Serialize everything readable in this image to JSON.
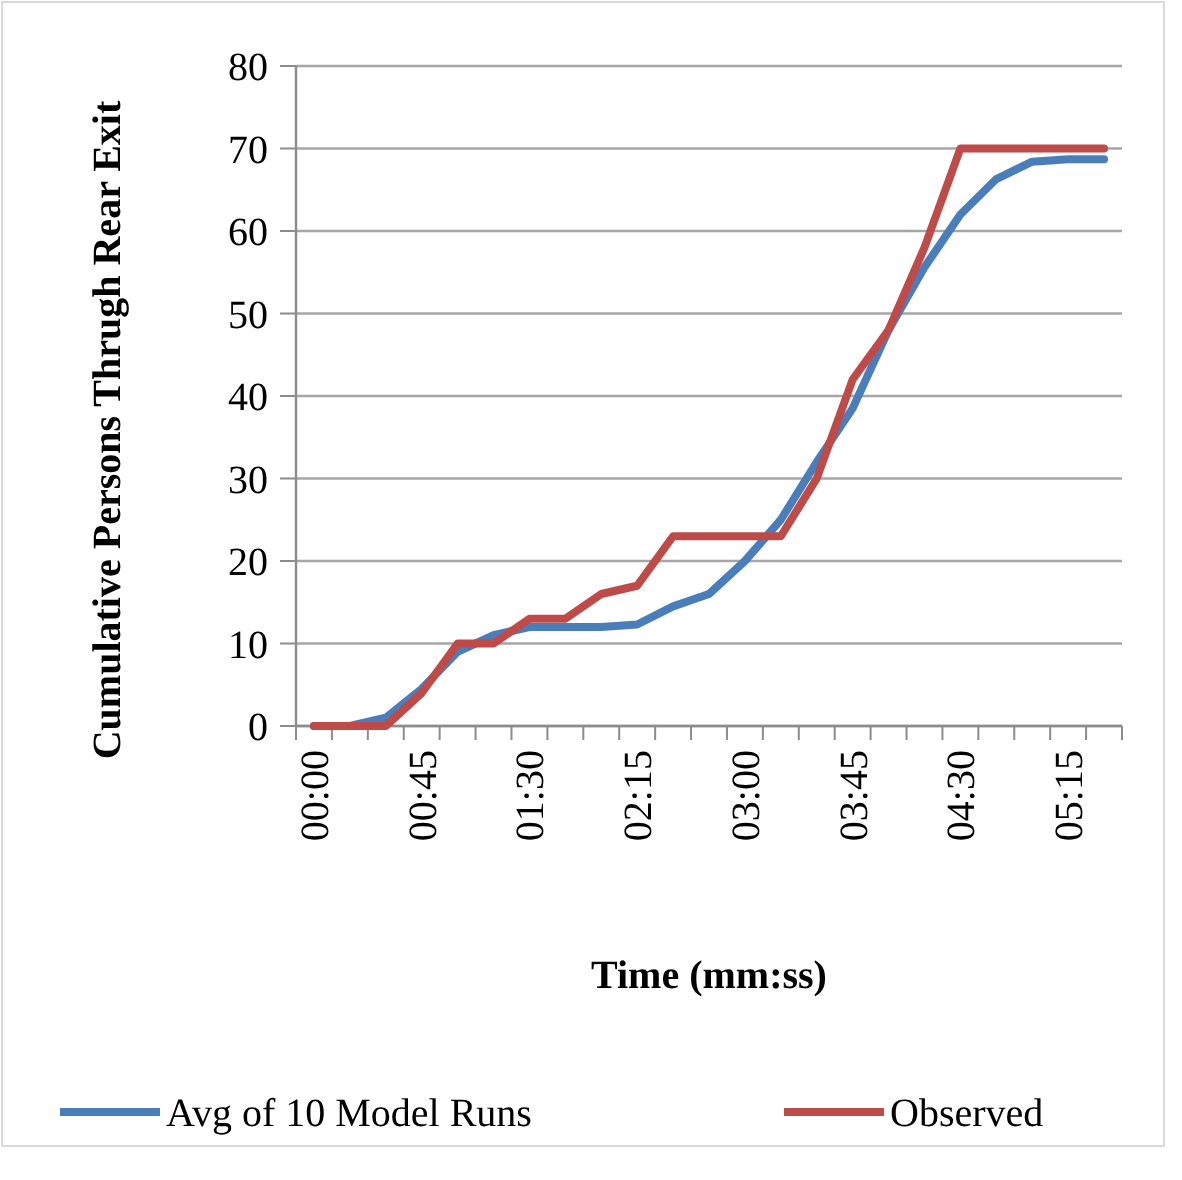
{
  "chart_data": {
    "type": "line",
    "xlabel": "Time (mm:ss)",
    "ylabel": "Cumulative Persons Thrugh Rear  Exit",
    "categories": [
      "00:00",
      null,
      null,
      "00:45",
      null,
      null,
      "01:30",
      null,
      null,
      "02:15",
      null,
      null,
      "03:00",
      null,
      null,
      "03:45",
      null,
      null,
      "04:30",
      null,
      null,
      "05:15",
      null
    ],
    "series": [
      {
        "name": "Avg of 10 Model Runs",
        "color": "#4a7ebb",
        "values": [
          0,
          0,
          1,
          4.5,
          9,
          11,
          12,
          12,
          12,
          12.3,
          14.5,
          16,
          20,
          25,
          32,
          38.5,
          48,
          55.6,
          62,
          66.3,
          68.4,
          68.7,
          68.7
        ]
      },
      {
        "name": "Observed",
        "color": "#be4b48",
        "values": [
          0,
          0,
          0,
          4,
          10,
          10,
          13,
          13,
          16,
          17,
          23,
          23,
          23,
          23,
          30,
          42,
          48,
          58,
          70,
          70,
          70,
          70,
          70
        ]
      }
    ],
    "ylim": [
      0,
      80
    ],
    "yticks": [
      0,
      10,
      20,
      30,
      40,
      50,
      60,
      70,
      80
    ],
    "grid": "y",
    "legend": "bottom",
    "marker": "none",
    "line_style": "solid"
  }
}
